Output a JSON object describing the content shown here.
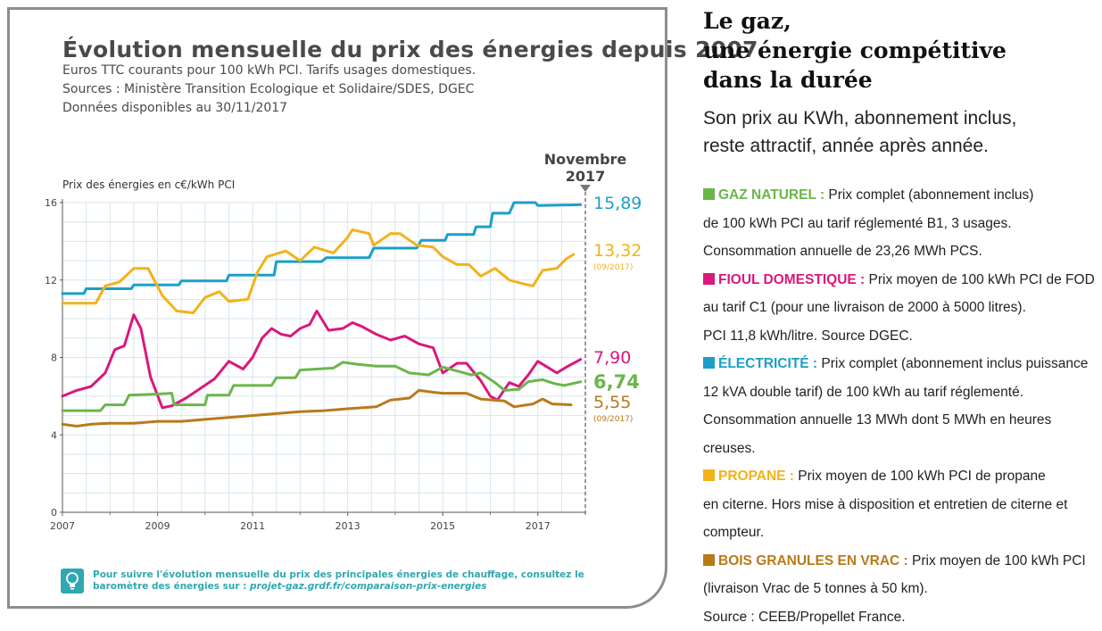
{
  "card": {
    "title": "Évolution mensuelle du prix des énergies depuis 2007",
    "subtitle_lines": [
      "Euros TTC courants pour 100 kWh PCI. Tarifs usages domestiques.",
      "Sources : Ministère Transition Ecologique et Solidaire/SDES, DGEC",
      "Données disponibles au 30/11/2017"
    ],
    "note_text": "Pour suivre l'évolution mensuelle du prix des principales énergies de chauffage, consultez le baromètre des énergies sur : ",
    "note_link": "projet-gaz.grdf.fr/comparaison-prix-energies",
    "bulb_icon": "lightbulb-icon"
  },
  "chart_data": {
    "type": "line",
    "ylabel": "Prix des énergies en c€/kWh PCI",
    "ylim": [
      0,
      16
    ],
    "yticks": [
      "0",
      "4",
      "8",
      "12",
      "16"
    ],
    "xlim": [
      2007,
      2018
    ],
    "xticks": [
      "2007",
      "2009",
      "2011",
      "2013",
      "2015",
      "2017"
    ],
    "grid": true,
    "marker_label": [
      "Novembre",
      "2017"
    ],
    "series": [
      {
        "id": "elec",
        "color": "#1aa0c8",
        "end_value": "15,89",
        "end_note": "",
        "points": [
          [
            2007.0,
            11.3
          ],
          [
            2007.45,
            11.3
          ],
          [
            2007.5,
            11.55
          ],
          [
            2008.45,
            11.55
          ],
          [
            2008.5,
            11.75
          ],
          [
            2009.45,
            11.75
          ],
          [
            2009.5,
            11.95
          ],
          [
            2010.45,
            11.95
          ],
          [
            2010.5,
            12.25
          ],
          [
            2011.45,
            12.25
          ],
          [
            2011.5,
            12.95
          ],
          [
            2012.45,
            12.95
          ],
          [
            2012.55,
            13.15
          ],
          [
            2013.45,
            13.15
          ],
          [
            2013.55,
            13.65
          ],
          [
            2014.45,
            13.65
          ],
          [
            2014.55,
            14.05
          ],
          [
            2015.05,
            14.05
          ],
          [
            2015.1,
            14.35
          ],
          [
            2015.65,
            14.35
          ],
          [
            2015.7,
            14.75
          ],
          [
            2016.0,
            14.75
          ],
          [
            2016.05,
            15.45
          ],
          [
            2016.4,
            15.45
          ],
          [
            2016.5,
            16.0
          ],
          [
            2016.95,
            16.0
          ],
          [
            2017.0,
            15.85
          ],
          [
            2017.9,
            15.89
          ]
        ]
      },
      {
        "id": "propane",
        "color": "#f2b21b",
        "end_value": "13,32",
        "end_note": "(09/2017)",
        "points": [
          [
            2007.0,
            10.8
          ],
          [
            2007.7,
            10.8
          ],
          [
            2007.9,
            11.7
          ],
          [
            2008.2,
            11.9
          ],
          [
            2008.5,
            12.6
          ],
          [
            2008.8,
            12.6
          ],
          [
            2009.1,
            11.2
          ],
          [
            2009.4,
            10.4
          ],
          [
            2009.75,
            10.3
          ],
          [
            2010.0,
            11.1
          ],
          [
            2010.3,
            11.4
          ],
          [
            2010.5,
            10.9
          ],
          [
            2010.9,
            11.0
          ],
          [
            2011.1,
            12.4
          ],
          [
            2011.3,
            13.2
          ],
          [
            2011.7,
            13.5
          ],
          [
            2012.0,
            13.0
          ],
          [
            2012.3,
            13.7
          ],
          [
            2012.7,
            13.4
          ],
          [
            2013.0,
            14.2
          ],
          [
            2013.1,
            14.6
          ],
          [
            2013.45,
            14.4
          ],
          [
            2013.55,
            13.8
          ],
          [
            2013.9,
            14.4
          ],
          [
            2014.1,
            14.4
          ],
          [
            2014.45,
            13.8
          ],
          [
            2014.8,
            13.7
          ],
          [
            2015.0,
            13.2
          ],
          [
            2015.3,
            12.8
          ],
          [
            2015.55,
            12.8
          ],
          [
            2015.8,
            12.2
          ],
          [
            2016.1,
            12.6
          ],
          [
            2016.4,
            12.0
          ],
          [
            2016.7,
            11.8
          ],
          [
            2016.9,
            11.7
          ],
          [
            2017.1,
            12.5
          ],
          [
            2017.4,
            12.6
          ],
          [
            2017.6,
            13.1
          ],
          [
            2017.75,
            13.32
          ]
        ]
      },
      {
        "id": "fioul",
        "color": "#d9197c",
        "end_value": "7,90",
        "end_note": "",
        "points": [
          [
            2007.0,
            6.0
          ],
          [
            2007.3,
            6.3
          ],
          [
            2007.6,
            6.5
          ],
          [
            2007.9,
            7.2
          ],
          [
            2008.1,
            8.4
          ],
          [
            2008.3,
            8.6
          ],
          [
            2008.5,
            10.2
          ],
          [
            2008.65,
            9.5
          ],
          [
            2008.85,
            7.0
          ],
          [
            2009.1,
            5.4
          ],
          [
            2009.3,
            5.5
          ],
          [
            2009.6,
            5.9
          ],
          [
            2009.9,
            6.4
          ],
          [
            2010.2,
            6.9
          ],
          [
            2010.5,
            7.8
          ],
          [
            2010.8,
            7.4
          ],
          [
            2011.0,
            8.0
          ],
          [
            2011.2,
            9.0
          ],
          [
            2011.4,
            9.5
          ],
          [
            2011.6,
            9.2
          ],
          [
            2011.8,
            9.1
          ],
          [
            2012.0,
            9.5
          ],
          [
            2012.2,
            9.7
          ],
          [
            2012.35,
            10.4
          ],
          [
            2012.6,
            9.4
          ],
          [
            2012.9,
            9.5
          ],
          [
            2013.1,
            9.8
          ],
          [
            2013.3,
            9.6
          ],
          [
            2013.6,
            9.2
          ],
          [
            2013.9,
            8.9
          ],
          [
            2014.2,
            9.1
          ],
          [
            2014.5,
            8.7
          ],
          [
            2014.8,
            8.5
          ],
          [
            2015.0,
            7.2
          ],
          [
            2015.3,
            7.7
          ],
          [
            2015.5,
            7.7
          ],
          [
            2015.8,
            6.8
          ],
          [
            2016.0,
            6.0
          ],
          [
            2016.15,
            5.8
          ],
          [
            2016.4,
            6.7
          ],
          [
            2016.6,
            6.5
          ],
          [
            2016.8,
            7.1
          ],
          [
            2017.0,
            7.8
          ],
          [
            2017.2,
            7.5
          ],
          [
            2017.4,
            7.2
          ],
          [
            2017.6,
            7.5
          ],
          [
            2017.9,
            7.9
          ]
        ]
      },
      {
        "id": "gaz",
        "color": "#6bb64a",
        "end_value": "6,74",
        "end_note": "",
        "points": [
          [
            2007.0,
            5.25
          ],
          [
            2007.8,
            5.25
          ],
          [
            2007.9,
            5.55
          ],
          [
            2008.3,
            5.55
          ],
          [
            2008.4,
            6.05
          ],
          [
            2008.9,
            6.1
          ],
          [
            2009.3,
            6.15
          ],
          [
            2009.35,
            5.55
          ],
          [
            2010.0,
            5.55
          ],
          [
            2010.05,
            6.05
          ],
          [
            2010.5,
            6.05
          ],
          [
            2010.6,
            6.55
          ],
          [
            2011.4,
            6.55
          ],
          [
            2011.5,
            6.95
          ],
          [
            2011.9,
            6.95
          ],
          [
            2012.0,
            7.35
          ],
          [
            2012.7,
            7.45
          ],
          [
            2012.9,
            7.75
          ],
          [
            2013.2,
            7.65
          ],
          [
            2013.6,
            7.55
          ],
          [
            2014.0,
            7.55
          ],
          [
            2014.3,
            7.2
          ],
          [
            2014.7,
            7.1
          ],
          [
            2015.0,
            7.5
          ],
          [
            2015.3,
            7.3
          ],
          [
            2015.6,
            7.1
          ],
          [
            2015.8,
            7.2
          ],
          [
            2016.1,
            6.7
          ],
          [
            2016.3,
            6.3
          ],
          [
            2016.6,
            6.35
          ],
          [
            2016.8,
            6.75
          ],
          [
            2017.1,
            6.85
          ],
          [
            2017.35,
            6.65
          ],
          [
            2017.55,
            6.55
          ],
          [
            2017.9,
            6.74
          ]
        ]
      },
      {
        "id": "bois",
        "color": "#b87a19",
        "end_value": "5,55",
        "end_note": "(09/2017)",
        "points": [
          [
            2007.0,
            4.55
          ],
          [
            2007.3,
            4.45
          ],
          [
            2007.6,
            4.55
          ],
          [
            2008.0,
            4.6
          ],
          [
            2008.5,
            4.6
          ],
          [
            2009.0,
            4.7
          ],
          [
            2009.5,
            4.7
          ],
          [
            2010.0,
            4.8
          ],
          [
            2010.5,
            4.9
          ],
          [
            2011.0,
            5.0
          ],
          [
            2011.5,
            5.1
          ],
          [
            2012.0,
            5.2
          ],
          [
            2012.5,
            5.25
          ],
          [
            2013.0,
            5.35
          ],
          [
            2013.6,
            5.45
          ],
          [
            2013.9,
            5.8
          ],
          [
            2014.3,
            5.9
          ],
          [
            2014.5,
            6.3
          ],
          [
            2014.8,
            6.2
          ],
          [
            2015.0,
            6.15
          ],
          [
            2015.5,
            6.15
          ],
          [
            2015.8,
            5.85
          ],
          [
            2016.3,
            5.75
          ],
          [
            2016.5,
            5.45
          ],
          [
            2016.9,
            5.6
          ],
          [
            2017.1,
            5.85
          ],
          [
            2017.3,
            5.6
          ],
          [
            2017.7,
            5.55
          ]
        ]
      }
    ]
  },
  "right": {
    "title_lines": [
      "Le gaz,",
      "une énergie compétitive",
      "dans la durée"
    ],
    "subtitle_lines": [
      "Son prix au KWh, abonnement inclus,",
      "reste attractif,  année après année."
    ],
    "legend": [
      {
        "color": "#6bb64a",
        "label": "GAZ NATUREL :",
        "lines": [
          " Prix complet (abonnement inclus)",
          "de 100 kWh PCI au tarif réglementé B1, 3 usages.",
          "Consommation annuelle de 23,26 MWh PCS."
        ]
      },
      {
        "color": "#d9197c",
        "label": "FIOUL DOMESTIQUE :",
        "lines": [
          " Prix moyen de 100 kWh PCI de FOD",
          "au tarif C1 (pour une livraison de 2000 à 5000 litres).",
          "PCI 11,8 kWh/litre. Source DGEC."
        ]
      },
      {
        "color": "#1aa0c8",
        "label": "ÉLECTRICITÉ :",
        "lines": [
          " Prix complet (abonnement inclus puissance",
          "12 kVA double tarif) de 100 kWh au tarif réglementé.",
          "Consommation annuelle 13 MWh dont 5 MWh en heures creuses."
        ]
      },
      {
        "color": "#f2b21b",
        "label": "PROPANE :",
        "lines": [
          " Prix moyen de 100 kWh PCI de propane",
          "en citerne. Hors mise à disposition et entretien de citerne et",
          "compteur."
        ]
      },
      {
        "color": "#b87a19",
        "label": "BOIS GRANULES EN VRAC :",
        "lines": [
          " Prix moyen de 100 kWh PCI",
          "(livraison Vrac de 5 tonnes à 50 km).",
          "Source : CEEB/Propellet France."
        ]
      }
    ]
  }
}
